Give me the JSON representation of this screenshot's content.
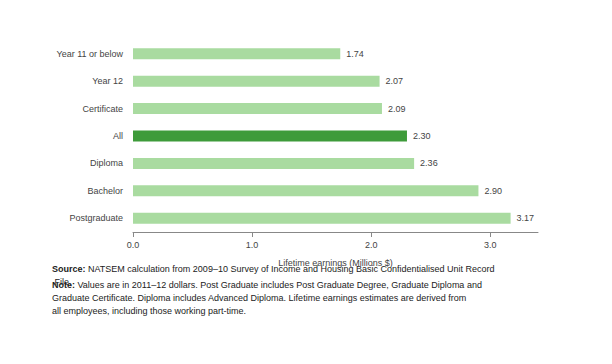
{
  "chart_data": {
    "type": "bar",
    "orientation": "horizontal",
    "categories": [
      "Year 11 or below",
      "Year 12",
      "Certificate",
      "All",
      "Diploma",
      "Bachelor",
      "Postgraduate"
    ],
    "values": [
      1.74,
      2.07,
      2.09,
      2.3,
      2.36,
      2.9,
      3.17
    ],
    "value_labels": [
      "1.74",
      "2.07",
      "2.09",
      "2.30",
      "2.36",
      "2.90",
      "3.17"
    ],
    "colors": [
      "#a9dba0",
      "#a9dba0",
      "#a9dba0",
      "#3e9b3a",
      "#a9dba0",
      "#a9dba0",
      "#a9dba0"
    ],
    "x_label": "Lifetime earnings (Millions $)",
    "xlim": [
      0,
      3.4
    ],
    "xticks": [
      {
        "value": 0,
        "label": "0.0"
      },
      {
        "value": 1,
        "label": "1.0"
      },
      {
        "value": 2,
        "label": "2.0"
      },
      {
        "value": 3,
        "label": "3.0"
      }
    ],
    "grid": false,
    "data_labels": true,
    "annotations": [
      "Source: NATSEM calculation from 2009–10 Survey of Income and Housing Basic Confidentialised Unit Record File.",
      "Note: Values are in 2011–12 dollars. Post Graduate includes Post Graduate Degree, Graduate Diploma and Graduate Certificate. Diploma includes Advanced Diploma. Lifetime earnings estimates are derived from all employees, including those working part-time."
    ]
  }
}
